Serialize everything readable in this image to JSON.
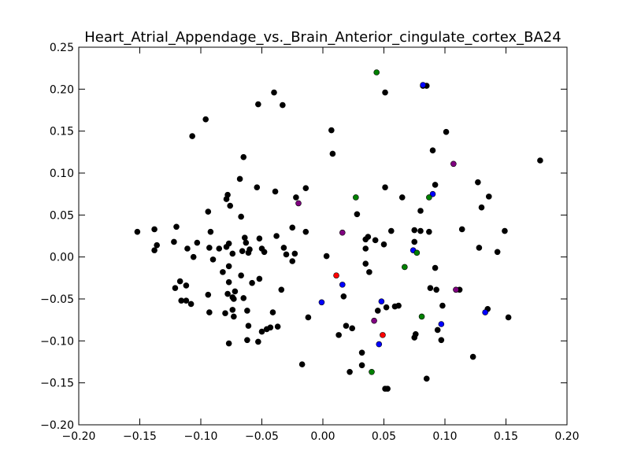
{
  "chart_data": {
    "type": "scatter",
    "title": "Heart_Atrial_Appendage_vs._Brain_Anterior_cingulate_cortex_BA24",
    "xlabel": "",
    "ylabel": "",
    "xlim": [
      -0.2,
      0.2
    ],
    "ylim": [
      -0.2,
      0.25
    ],
    "x_ticks": [
      "−0.20",
      "−0.15",
      "−0.10",
      "−0.05",
      "0.00",
      "0.05",
      "0.10",
      "0.15",
      "0.20"
    ],
    "y_ticks": [
      "−0.20",
      "−0.15",
      "−0.10",
      "−0.05",
      "0.00",
      "0.05",
      "0.10",
      "0.15",
      "0.20",
      "0.25"
    ],
    "grid": false,
    "series": [
      {
        "color": "#000000",
        "points": [
          [
            -0.152,
            0.03
          ],
          [
            -0.138,
            0.033
          ],
          [
            -0.136,
            0.014
          ],
          [
            -0.138,
            0.008
          ],
          [
            -0.122,
            0.018
          ],
          [
            -0.12,
            0.036
          ],
          [
            -0.121,
            -0.037
          ],
          [
            -0.117,
            -0.029
          ],
          [
            -0.116,
            -0.052
          ],
          [
            -0.112,
            -0.052
          ],
          [
            -0.111,
            0.01
          ],
          [
            -0.112,
            -0.034
          ],
          [
            -0.108,
            -0.056
          ],
          [
            -0.107,
            0.144
          ],
          [
            -0.106,
            0.0
          ],
          [
            -0.103,
            0.017
          ],
          [
            -0.096,
            0.164
          ],
          [
            -0.094,
            0.054
          ],
          [
            -0.094,
            -0.045
          ],
          [
            -0.093,
            0.011
          ],
          [
            -0.093,
            -0.066
          ],
          [
            -0.092,
            0.03
          ],
          [
            -0.09,
            -0.003
          ],
          [
            -0.085,
            0.01
          ],
          [
            -0.082,
            -0.018
          ],
          [
            -0.08,
            -0.067
          ],
          [
            -0.079,
            0.069
          ],
          [
            -0.079,
            0.012
          ],
          [
            -0.078,
            0.074
          ],
          [
            -0.078,
            -0.044
          ],
          [
            -0.077,
            -0.03
          ],
          [
            -0.077,
            -0.103
          ],
          [
            -0.076,
            0.061
          ],
          [
            -0.077,
            0.016
          ],
          [
            -0.077,
            -0.011
          ],
          [
            -0.074,
            -0.063
          ],
          [
            -0.074,
            0.004
          ],
          [
            -0.074,
            -0.048
          ],
          [
            -0.073,
            -0.071
          ],
          [
            -0.073,
            -0.05
          ],
          [
            -0.072,
            -0.041
          ],
          [
            -0.068,
            0.093
          ],
          [
            -0.067,
            0.048
          ],
          [
            -0.067,
            -0.022
          ],
          [
            -0.066,
            0.007
          ],
          [
            -0.065,
            -0.049
          ],
          [
            -0.065,
            0.119
          ],
          [
            -0.064,
            0.023
          ],
          [
            -0.063,
            0.017
          ],
          [
            -0.062,
            -0.064
          ],
          [
            -0.062,
            -0.099
          ],
          [
            -0.061,
            0.005
          ],
          [
            -0.061,
            -0.082
          ],
          [
            -0.06,
            0.009
          ],
          [
            -0.058,
            -0.031
          ],
          [
            -0.054,
            0.083
          ],
          [
            -0.053,
            -0.101
          ],
          [
            -0.053,
            0.182
          ],
          [
            -0.052,
            -0.026
          ],
          [
            -0.052,
            0.022
          ],
          [
            -0.05,
            -0.089
          ],
          [
            -0.05,
            0.01
          ],
          [
            -0.048,
            0.006
          ],
          [
            -0.046,
            -0.086
          ],
          [
            -0.043,
            -0.084
          ],
          [
            -0.04,
            0.196
          ],
          [
            -0.041,
            -0.066
          ],
          [
            -0.039,
            0.078
          ],
          [
            -0.038,
            0.025
          ],
          [
            -0.037,
            -0.083
          ],
          [
            -0.034,
            -0.039
          ],
          [
            -0.033,
            0.181
          ],
          [
            -0.032,
            0.011
          ],
          [
            -0.03,
            0.003
          ],
          [
            -0.025,
            0.035
          ],
          [
            -0.025,
            -0.005
          ],
          [
            -0.023,
            0.004
          ],
          [
            -0.022,
            0.071
          ],
          [
            -0.017,
            -0.128
          ],
          [
            -0.014,
            0.082
          ],
          [
            -0.014,
            0.03
          ],
          [
            -0.012,
            -0.072
          ],
          [
            0.003,
            0.001
          ],
          [
            0.007,
            0.151
          ],
          [
            0.008,
            0.123
          ],
          [
            0.013,
            -0.093
          ],
          [
            0.017,
            -0.047
          ],
          [
            0.019,
            -0.082
          ],
          [
            0.022,
            -0.137
          ],
          [
            0.024,
            -0.085
          ],
          [
            0.028,
            0.051
          ],
          [
            0.032,
            -0.114
          ],
          [
            0.032,
            -0.129
          ],
          [
            0.035,
            0.021
          ],
          [
            0.035,
            0.01
          ],
          [
            0.035,
            -0.008
          ],
          [
            0.037,
            0.024
          ],
          [
            0.038,
            -0.018
          ],
          [
            0.043,
            0.02
          ],
          [
            0.045,
            -0.064
          ],
          [
            0.05,
            0.015
          ],
          [
            0.051,
            0.196
          ],
          [
            0.051,
            0.083
          ],
          [
            0.051,
            -0.157
          ],
          [
            0.053,
            -0.157
          ],
          [
            0.052,
            -0.06
          ],
          [
            0.056,
            0.031
          ],
          [
            0.059,
            -0.059
          ],
          [
            0.062,
            -0.058
          ],
          [
            0.065,
            0.071
          ],
          [
            0.075,
            -0.096
          ],
          [
            0.075,
            0.032
          ],
          [
            0.075,
            0.018
          ],
          [
            0.076,
            -0.092
          ],
          [
            0.08,
            0.031
          ],
          [
            0.08,
            0.055
          ],
          [
            0.082,
            0.204
          ],
          [
            0.085,
            0.204
          ],
          [
            0.085,
            -0.145
          ],
          [
            0.087,
            0.03
          ],
          [
            0.088,
            -0.037
          ],
          [
            0.09,
            0.127
          ],
          [
            0.092,
            0.086
          ],
          [
            0.092,
            -0.013
          ],
          [
            0.093,
            -0.039
          ],
          [
            0.094,
            -0.087
          ],
          [
            0.097,
            -0.099
          ],
          [
            0.098,
            -0.058
          ],
          [
            0.101,
            0.149
          ],
          [
            0.112,
            -0.039
          ],
          [
            0.114,
            0.033
          ],
          [
            0.123,
            -0.119
          ],
          [
            0.127,
            0.089
          ],
          [
            0.128,
            0.011
          ],
          [
            0.13,
            0.059
          ],
          [
            0.135,
            -0.062
          ],
          [
            0.136,
            0.072
          ],
          [
            0.143,
            0.006
          ],
          [
            0.149,
            0.031
          ],
          [
            0.152,
            -0.072
          ],
          [
            0.178,
            0.115
          ]
        ]
      },
      {
        "color": "#0000ff",
        "points": [
          [
            0.082,
            0.205
          ],
          [
            0.09,
            0.075
          ],
          [
            0.074,
            0.008
          ],
          [
            0.016,
            -0.033
          ],
          [
            -0.001,
            -0.054
          ],
          [
            0.048,
            -0.053
          ],
          [
            0.097,
            -0.08
          ],
          [
            0.046,
            -0.104
          ],
          [
            0.133,
            -0.066
          ]
        ]
      },
      {
        "color": "#008000",
        "points": [
          [
            0.044,
            0.22
          ],
          [
            0.027,
            0.071
          ],
          [
            0.087,
            0.071
          ],
          [
            0.077,
            0.005
          ],
          [
            0.067,
            -0.012
          ],
          [
            0.081,
            -0.071
          ],
          [
            0.04,
            -0.137
          ]
        ]
      },
      {
        "color": "#800080",
        "points": [
          [
            0.107,
            0.111
          ],
          [
            -0.02,
            0.064
          ],
          [
            0.016,
            0.029
          ],
          [
            0.109,
            -0.039
          ],
          [
            0.042,
            -0.076
          ]
        ]
      },
      {
        "color": "#ff0000",
        "points": [
          [
            0.011,
            -0.022
          ],
          [
            0.049,
            -0.093
          ]
        ]
      }
    ]
  }
}
